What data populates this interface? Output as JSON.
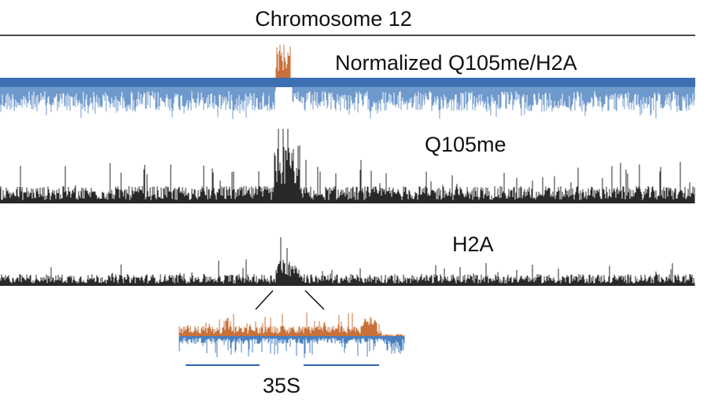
{
  "figure": {
    "title": "Chromosome 12",
    "tracks": [
      {
        "id": "ratio",
        "label": "Normalized Q105me/H2A",
        "colors": {
          "positive": "#c8713a",
          "negative": "#4a80c0",
          "band": "#3d6fb3"
        }
      },
      {
        "id": "q105me",
        "label": "Q105me",
        "colors": {
          "signal": "#111111"
        }
      },
      {
        "id": "h2a",
        "label": "H2A",
        "colors": {
          "signal": "#111111"
        }
      }
    ],
    "zoom": {
      "region_label": "35S",
      "colors": {
        "positive": "#c8713a",
        "negative": "#4a80c0",
        "gene_line": "#2f64b0"
      }
    }
  }
}
